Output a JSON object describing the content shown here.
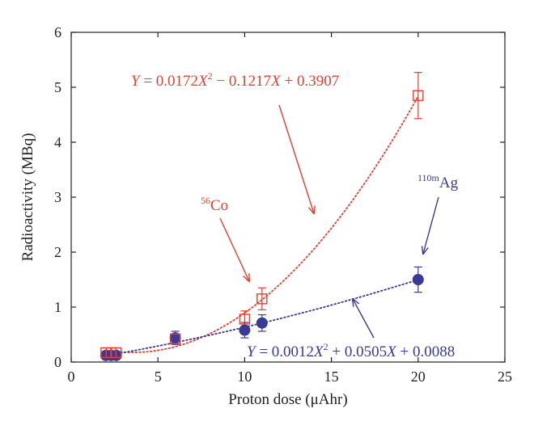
{
  "chart_data": {
    "type": "scatter",
    "xlabel": "Proton dose (μAhr)",
    "ylabel": "Radioactivity (MBq)",
    "xlim": [
      0,
      25
    ],
    "ylim": [
      0,
      6
    ],
    "xticks": [
      "0",
      "5",
      "10",
      "15",
      "20",
      "25"
    ],
    "yticks": [
      "0",
      "1",
      "2",
      "3",
      "4",
      "5",
      "6"
    ],
    "grid": false,
    "series": [
      {
        "name": "⁵⁶Co",
        "marker": "open-square",
        "color": "#ee3b2b",
        "x": [
          2.0,
          2.3,
          2.6,
          6.0,
          10.0,
          11.0,
          20.0
        ],
        "y": [
          0.17,
          0.17,
          0.17,
          0.42,
          0.78,
          1.15,
          4.85
        ],
        "err": [
          0.02,
          0.02,
          0.02,
          0.08,
          0.15,
          0.2,
          0.42
        ],
        "fit": {
          "a": 0.0172,
          "b": -0.1217,
          "c": 0.3907,
          "equation": "Y = 0.0172X² − 0.1217X + 0.3907"
        }
      },
      {
        "name": "¹¹⁰ᵐAg",
        "marker": "filled-circle",
        "color": "#3a3a96",
        "x": [
          2.0,
          2.3,
          2.6,
          6.0,
          10.0,
          11.0,
          20.0
        ],
        "y": [
          0.12,
          0.12,
          0.12,
          0.44,
          0.58,
          0.71,
          1.5
        ],
        "err": [
          0.02,
          0.02,
          0.02,
          0.12,
          0.14,
          0.15,
          0.23
        ],
        "fit": {
          "a": 0.0012,
          "b": 0.0505,
          "c": 0.0088,
          "equation": "Y = 0.0012X² + 0.0505X + 0.0088"
        }
      }
    ]
  },
  "annotations": {
    "co_equation": {
      "pre": "Y",
      "mid1": " = 0.0172",
      "x1": "X",
      "sup": "2",
      "mid2": " − 0.1217",
      "x2": "X",
      "tail": " + 0.3907"
    },
    "ag_equation": {
      "pre": "Y",
      "mid1": " = 0.0012",
      "x1": "X",
      "sup": "2",
      "mid2": " + 0.0505",
      "x2": "X",
      "tail": " + 0.0088"
    },
    "co_label": {
      "mass": "56",
      "element": "Co"
    },
    "ag_label": {
      "mass": "110m",
      "element": "Ag"
    }
  }
}
